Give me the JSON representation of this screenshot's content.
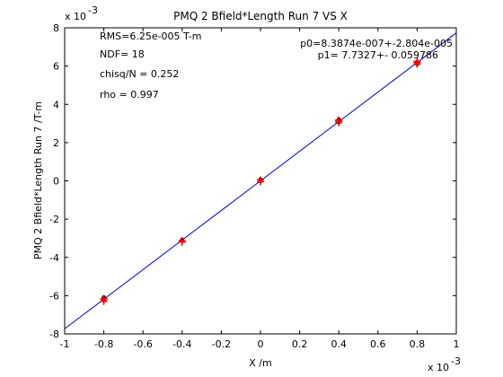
{
  "chart_data": {
    "type": "scatter",
    "title": "PMQ 2 Bfield*Length Run 7 VS X",
    "xlabel": "X /m",
    "ylabel": "PMQ 2 Bfield*Length Run 7 /T-m",
    "x_exponent_label": "x 10",
    "x_exponent_power": "-3",
    "y_exponent_label": "x 10",
    "y_exponent_power": "-3",
    "xlim": [
      -1,
      1
    ],
    "ylim": [
      -8,
      8
    ],
    "xticks": [
      -1,
      -0.8,
      -0.6,
      -0.4,
      -0.2,
      0,
      0.2,
      0.4,
      0.6,
      0.8,
      1
    ],
    "xtick_labels": [
      "-1",
      "-0.8",
      "-0.6",
      "-0.4",
      "-0.2",
      "0",
      "0.2",
      "0.4",
      "0.6",
      "0.8",
      "1"
    ],
    "yticks": [
      -8,
      -6,
      -4,
      -2,
      0,
      2,
      4,
      6,
      8
    ],
    "ytick_labels": [
      "-8",
      "-6",
      "-4",
      "-2",
      "0",
      "2",
      "4",
      "6",
      "8"
    ],
    "grid": false,
    "stats": {
      "rms": "RMS=6.25e-005 T-m",
      "ndf": "NDF=   18",
      "chisq": "chisq/N = 0.252",
      "rho": "rho    =  0.997",
      "p0": "p0=8.3874e-007+-2.804e-005",
      "p1": "p1=   7.7327+- 0.059786"
    },
    "fit_line": {
      "color": "#0000cc",
      "x": [
        -1,
        1
      ],
      "y": [
        -7.732,
        7.734
      ]
    },
    "series": [
      {
        "marker": "dot",
        "color": "#000000",
        "x": [
          -0.8,
          -0.8,
          -0.4,
          0,
          0,
          0.4,
          0.4,
          0.8,
          0.8
        ],
        "y": [
          -6.08,
          -6.25,
          -3.08,
          0.08,
          -0.02,
          3.22,
          3.05,
          6.22,
          6.1
        ]
      },
      {
        "marker": "plus",
        "color": "#ff0000",
        "x": [
          -0.8,
          -0.8,
          -0.8,
          -0.4,
          -0.4,
          0,
          0,
          0.4,
          0.4,
          0.4,
          0.8,
          0.8,
          0.8
        ],
        "y": [
          -6.15,
          -6.3,
          -6.2,
          -3.12,
          -3.2,
          0.05,
          -0.05,
          3.12,
          3.05,
          3.18,
          6.18,
          6.1,
          6.25
        ]
      }
    ]
  }
}
